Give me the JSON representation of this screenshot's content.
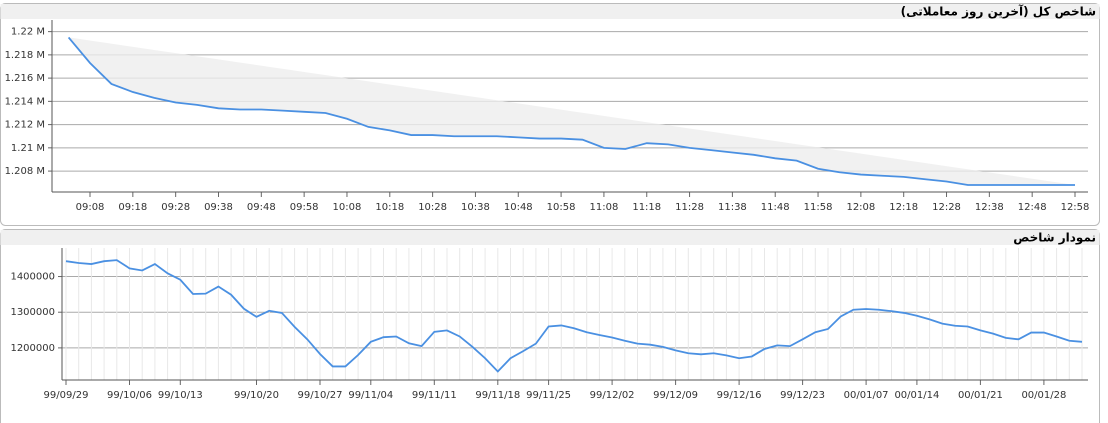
{
  "chart_data": [
    {
      "type": "line",
      "title": "شاخص کل (آخرین روز معاملاتی)",
      "categories": [
        null,
        "09:08",
        null,
        "09:18",
        null,
        "09:28",
        null,
        "09:38",
        null,
        "09:48",
        null,
        "09:58",
        null,
        "10:08",
        null,
        "10:18",
        null,
        "10:28",
        null,
        "10:38",
        null,
        "10:48",
        null,
        "10:58",
        null,
        "11:08",
        null,
        "11:18",
        null,
        "11:28",
        null,
        "11:38",
        null,
        "11:48",
        null,
        "11:58",
        null,
        "12:08",
        null,
        "12:18",
        null,
        "12:28",
        null,
        "12:38",
        null,
        "12:48",
        null,
        "12:58"
      ],
      "values": [
        1219500,
        1217300,
        1215500,
        1214800,
        1214300,
        1213900,
        1213700,
        1213400,
        1213300,
        1213300,
        1213200,
        1213100,
        1213000,
        1212500,
        1211800,
        1211500,
        1211100,
        1211100,
        1211000,
        1211000,
        1211000,
        1210900,
        1210800,
        1210800,
        1210700,
        1210000,
        1209900,
        1210400,
        1210300,
        1210000,
        1209800,
        1209600,
        1209400,
        1209100,
        1208900,
        1208200,
        1207900,
        1207700,
        1207600,
        1207500,
        1207300,
        1207100,
        1206800,
        1206800,
        1206800,
        1206800,
        1206800,
        1206800
      ],
      "color": "#4a90e2",
      "ylim": [
        1206200,
        1221000
      ],
      "yticks": [
        {
          "value": 1208000,
          "label": "1.208 M"
        },
        {
          "value": 1210000,
          "label": "1.21 M"
        },
        {
          "value": 1212000,
          "label": "1.212 M"
        },
        {
          "value": 1214000,
          "label": "1.214 M"
        },
        {
          "value": 1216000,
          "label": "1.216 M"
        },
        {
          "value": 1218000,
          "label": "1.218 M"
        },
        {
          "value": 1220000,
          "label": "1.22 M"
        }
      ],
      "grid": true
    },
    {
      "type": "line",
      "title": "نمودار شاخص",
      "categories": [
        "99/09/29",
        null,
        null,
        null,
        null,
        "99/10/06",
        null,
        null,
        null,
        "99/10/13",
        null,
        null,
        null,
        null,
        null,
        "99/10/20",
        null,
        null,
        null,
        null,
        "99/10/27",
        null,
        null,
        null,
        "99/11/04",
        null,
        null,
        null,
        null,
        "99/11/11",
        null,
        null,
        null,
        null,
        "99/11/18",
        null,
        null,
        null,
        "99/11/25",
        null,
        null,
        null,
        null,
        "99/12/02",
        null,
        null,
        null,
        null,
        "99/12/09",
        null,
        null,
        null,
        null,
        "99/12/16",
        null,
        null,
        null,
        null,
        "99/12/23",
        null,
        null,
        null,
        null,
        "00/01/07",
        null,
        null,
        null,
        "00/01/14",
        null,
        null,
        null,
        null,
        "00/01/21",
        null,
        null,
        null,
        null,
        "00/01/28",
        null,
        null,
        null
      ],
      "values": [
        1443000,
        1438000,
        1435000,
        1443000,
        1446000,
        1423000,
        1417000,
        1435000,
        1409000,
        1391000,
        1351000,
        1352000,
        1372000,
        1349000,
        1310000,
        1287000,
        1304000,
        1298000,
        1259000,
        1224000,
        1183000,
        1148000,
        1148000,
        1180000,
        1217000,
        1230000,
        1232000,
        1213000,
        1205000,
        1245000,
        1249000,
        1232000,
        1203000,
        1171000,
        1134000,
        1171000,
        1191000,
        1212000,
        1260000,
        1263000,
        1255000,
        1244000,
        1236000,
        1229000,
        1220000,
        1212000,
        1209000,
        1203000,
        1193000,
        1185000,
        1182000,
        1185000,
        1179000,
        1171000,
        1176000,
        1197000,
        1207000,
        1205000,
        1224000,
        1244000,
        1253000,
        1288000,
        1307000,
        1309000,
        1307000,
        1303000,
        1298000,
        1290000,
        1280000,
        1268000,
        1262000,
        1260000,
        1249000,
        1240000,
        1228000,
        1224000,
        1243000,
        1243000,
        1232000,
        1220000,
        1217000
      ],
      "color": "#4a90e2",
      "ylim": [
        1110000,
        1480000
      ],
      "yticks": [
        1200000,
        1300000,
        1400000
      ],
      "grid": true
    }
  ]
}
